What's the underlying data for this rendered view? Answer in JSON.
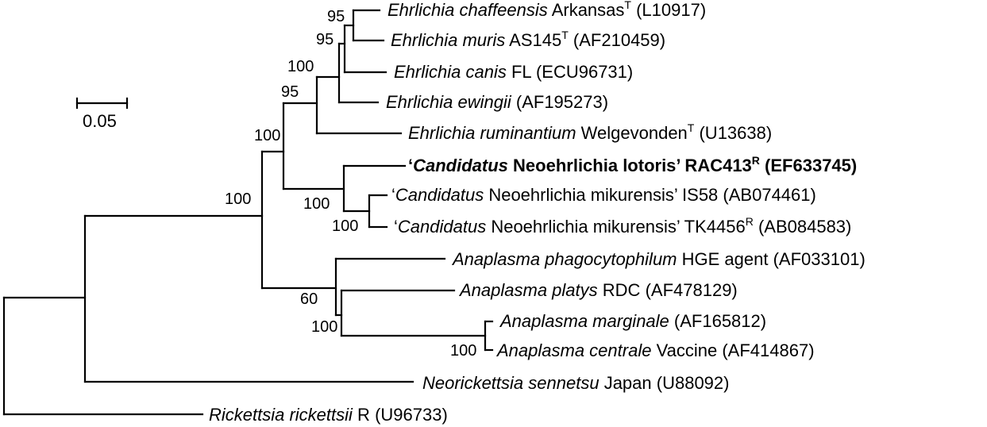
{
  "scale_bar": {
    "label": "0.05"
  },
  "taxa": [
    {
      "id": "e-chaffeensis",
      "name": "Ehrlichia chaffeensis",
      "strain": "Arkansas",
      "sup": "T",
      "acc": "(L10917)"
    },
    {
      "id": "e-muris",
      "name": "Ehrlichia muris",
      "strain": "AS145",
      "sup": "T",
      "acc": "(AF210459)"
    },
    {
      "id": "e-canis",
      "name": "Ehrlichia canis",
      "strain": "FL",
      "sup": "",
      "acc": "(ECU96731)"
    },
    {
      "id": "e-ewingii",
      "name": "Ehrlichia ewingii",
      "strain": "",
      "sup": "",
      "acc": "(AF195273)"
    },
    {
      "id": "e-ruminantium",
      "name": "Ehrlichia ruminantium",
      "strain": "Welgevonden",
      "sup": "T",
      "acc": "(U13638)"
    },
    {
      "id": "cn-lotoris",
      "pre": "‘",
      "name": "Candidatus",
      "rest": " Neoehrlichia lotoris’ RAC413",
      "sup": "R",
      "acc": "(EF633745)",
      "bold": true
    },
    {
      "id": "cn-mikurensis-is58",
      "pre": "‘",
      "name": "Candidatus",
      "rest": " Neoehrlichia mikurensis’ IS58",
      "sup": "",
      "acc": "(AB074461)"
    },
    {
      "id": "cn-mikurensis-tk4456",
      "pre": "‘",
      "name": "Candidatus",
      "rest": " Neoehrlichia mikurensis’ TK4456",
      "sup": "R",
      "acc": "(AB084583)"
    },
    {
      "id": "a-phagocytophilum",
      "name": "Anaplasma phagocytophilum",
      "strain": "HGE agent",
      "sup": "",
      "acc": "(AF033101)"
    },
    {
      "id": "a-platys",
      "name": "Anaplasma platys",
      "strain": "RDC",
      "sup": "",
      "acc": "(AF478129)"
    },
    {
      "id": "a-marginale",
      "name": "Anaplasma marginale",
      "strain": "",
      "sup": "",
      "acc": "(AF165812)"
    },
    {
      "id": "a-centrale",
      "name": "Anaplasma centrale",
      "strain": "Vaccine",
      "sup": "",
      "acc": "(AF414867)"
    },
    {
      "id": "n-sennetsu",
      "name": "Neorickettsia sennetsu",
      "strain": "Japan",
      "sup": "",
      "acc": "(U88092)"
    },
    {
      "id": "r-rickettsii",
      "name": "Rickettsia rickettsii",
      "strain": "R",
      "sup": "",
      "acc": "(U96733)"
    }
  ],
  "bootstrap": {
    "chaffeensis_muris": "95",
    "chaffeensis_muris_canis": "95",
    "ehrlichia_core": "100",
    "ehrlichia_all": "95",
    "ingroup_top": "100",
    "neoehrlichia": "100",
    "mikurensis": "100",
    "anaplasma_platys": "100",
    "anaplasma_group": "60",
    "marginale_centrale": "100"
  }
}
